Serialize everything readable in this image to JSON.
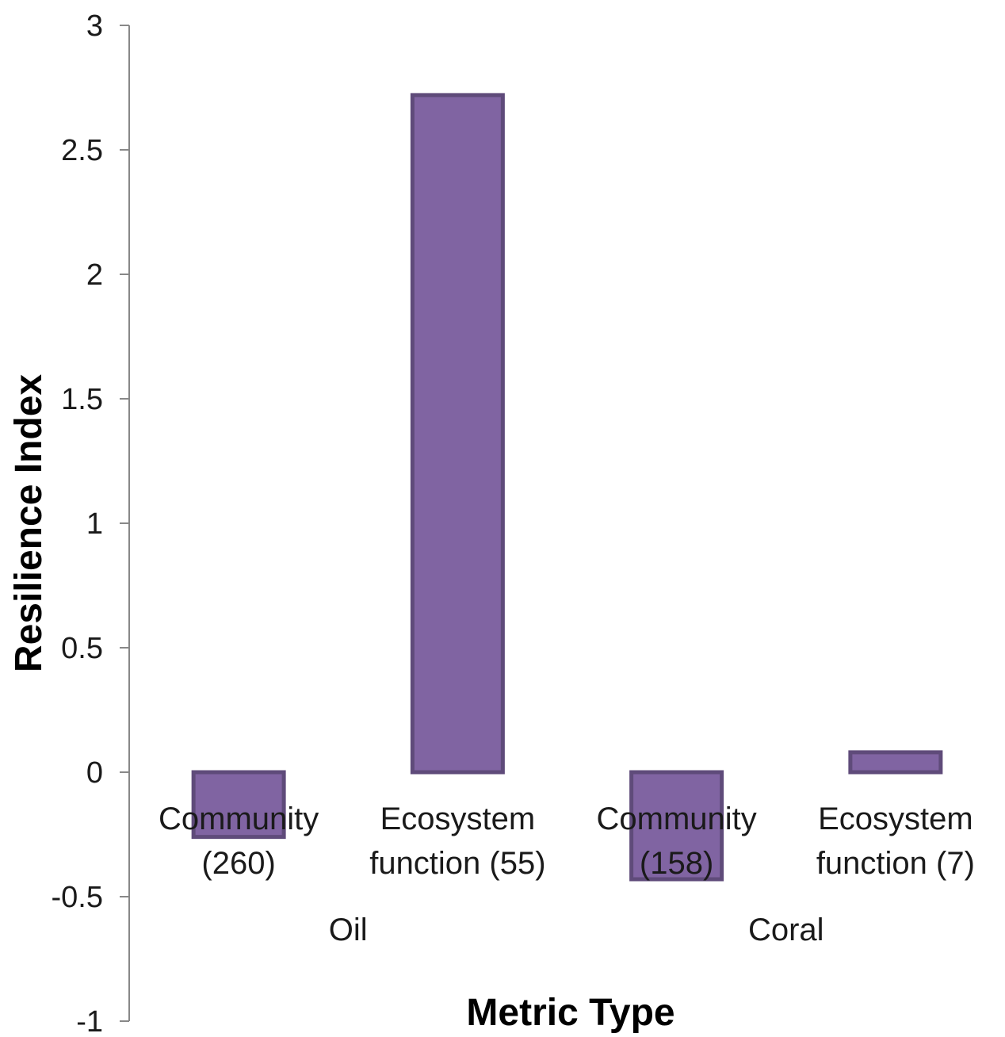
{
  "chart_data": {
    "type": "bar",
    "xlabel": "Metric Type",
    "ylabel": "Resilience Index",
    "ylim": [
      -1,
      3
    ],
    "yticks": [
      "3",
      "2.5",
      "2",
      "1.5",
      "1",
      "0.5",
      "0",
      "-0.5",
      "-1"
    ],
    "ytick_values": [
      3,
      2.5,
      2,
      1.5,
      1,
      0.5,
      0,
      -0.5,
      -1
    ],
    "groups": [
      {
        "name": "Oil",
        "categories": [
          0,
          1
        ]
      },
      {
        "name": "Coral",
        "categories": [
          2,
          3
        ]
      }
    ],
    "categories": [
      [
        "Community",
        "(260)"
      ],
      [
        "Ecosystem",
        "function (55)"
      ],
      [
        "Community",
        "(158)"
      ],
      [
        "Ecosystem",
        "function (7)"
      ]
    ],
    "values": [
      -0.26,
      2.72,
      -0.43,
      0.08
    ],
    "grid": false,
    "legend": "none",
    "colors": {
      "bar_fill": "#8064a2",
      "bar_stroke": "#5f4b7a",
      "axis": "#888888"
    }
  }
}
